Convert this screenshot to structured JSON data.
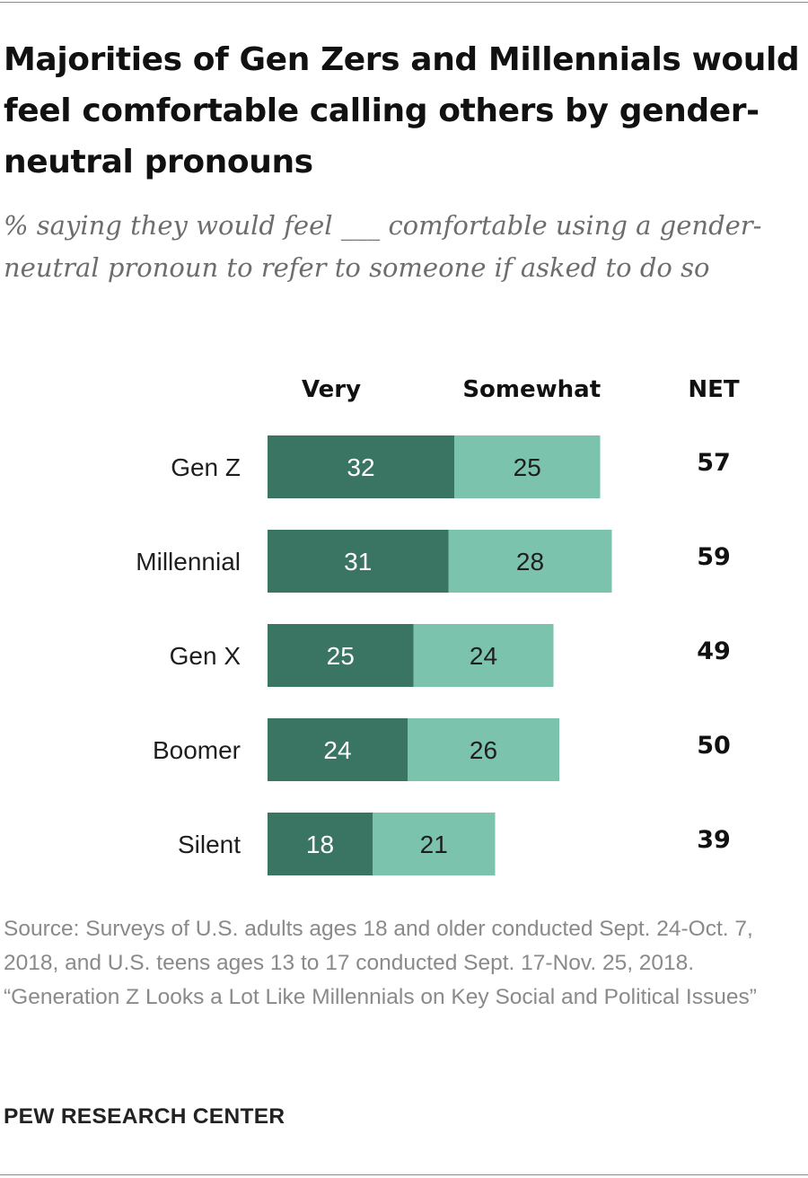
{
  "header": {
    "title": "Majorities of Gen Zers and Millennials would feel comfortable calling others by gender-neutral pronouns",
    "subtitle": "% saying they would feel ___ comfortable using a gender-neutral pronoun to refer to someone if asked to do so"
  },
  "chart_data": {
    "type": "bar",
    "orientation": "horizontal",
    "stacked": true,
    "categories": [
      "Gen Z",
      "Millennial",
      "Gen X",
      "Boomer",
      "Silent"
    ],
    "series": [
      {
        "name": "Very",
        "values": [
          32,
          31,
          25,
          24,
          18
        ],
        "color": "#3a7563"
      },
      {
        "name": "Somewhat",
        "values": [
          25,
          28,
          24,
          26,
          21
        ],
        "color": "#7cc3ae"
      }
    ],
    "net": {
      "label": "NET",
      "values": [
        57,
        59,
        49,
        50,
        39
      ]
    },
    "colors": {
      "very_label": "#ffffff",
      "somewhat_label": "#1e1e1e"
    }
  },
  "footer": {
    "source": "Source: Surveys of U.S. adults ages 18 and older conducted Sept. 24-Oct. 7, 2018, and U.S. teens ages 13 to 17 conducted Sept. 17-Nov. 25, 2018.",
    "report": "“Generation Z Looks a Lot Like Millennials on Key Social and Political Issues”",
    "brand": "PEW RESEARCH CENTER"
  }
}
